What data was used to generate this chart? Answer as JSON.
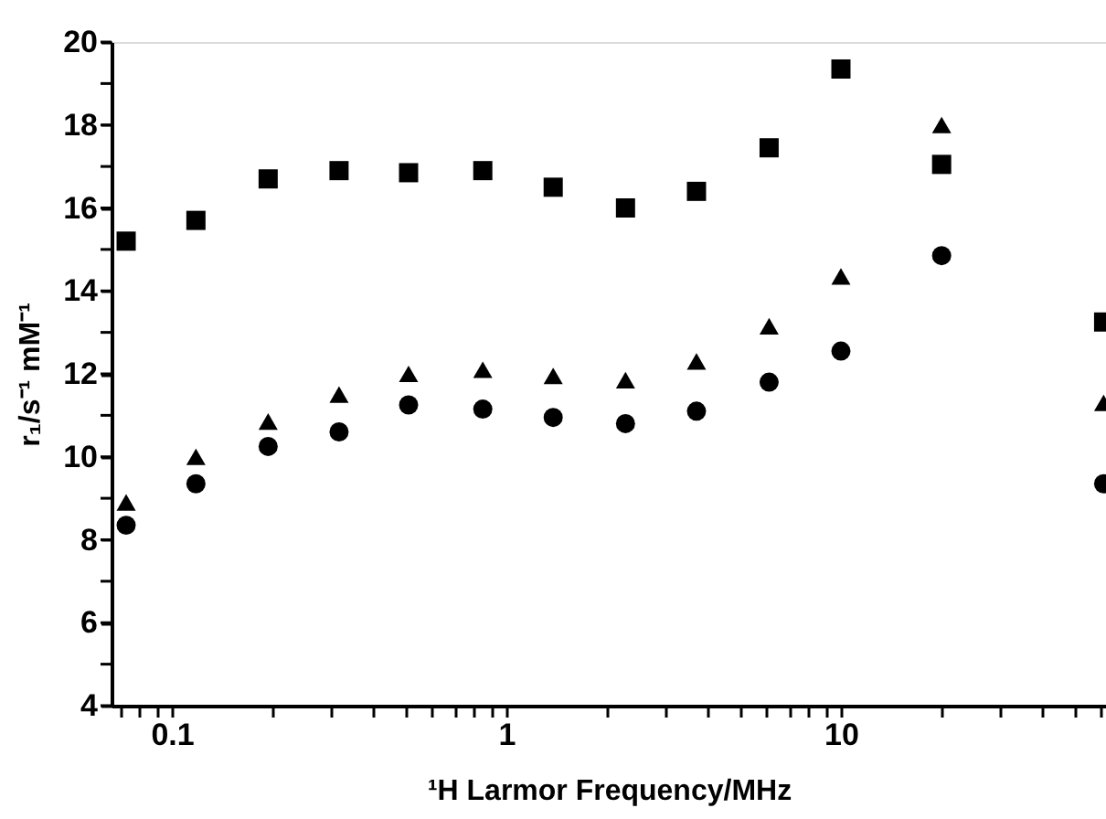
{
  "chart_data": {
    "type": "scatter",
    "xlabel": "¹H Larmor Frequency/MHz",
    "ylabel": "r₁/s⁻¹ mM⁻¹",
    "x": [
      0.073,
      0.118,
      0.194,
      0.316,
      0.51,
      0.85,
      1.38,
      2.27,
      3.7,
      6.1,
      10,
      20,
      61
    ],
    "series": [
      {
        "color": "#000000",
        "marker": "square",
        "values": [
          15.2,
          15.7,
          16.7,
          16.9,
          16.85,
          16.9,
          16.5,
          16.0,
          16.4,
          17.45,
          19.35,
          17.05,
          13.25
        ]
      },
      {
        "color": "#000000",
        "marker": "triangle",
        "values": [
          8.9,
          10.0,
          10.85,
          11.5,
          12.0,
          12.1,
          11.95,
          11.85,
          12.3,
          13.15,
          14.35,
          18.0,
          11.3
        ]
      },
      {
        "color": "#000000",
        "marker": "circle",
        "values": [
          8.35,
          9.35,
          10.25,
          10.6,
          11.25,
          11.15,
          10.95,
          10.8,
          11.1,
          11.8,
          12.55,
          14.85,
          9.35
        ]
      }
    ],
    "log": "x",
    "grid": false,
    "xlim": [
      0.066,
      62
    ],
    "ylim": [
      4,
      20
    ],
    "xticks": [
      {
        "value": 0.07,
        "label": null
      },
      {
        "value": 0.08,
        "label": null
      },
      {
        "value": 0.09,
        "label": null
      },
      0.1,
      {
        "value": 0.2,
        "label": null
      },
      {
        "value": 0.3,
        "label": null
      },
      {
        "value": 0.4,
        "label": null
      },
      {
        "value": 0.5,
        "label": null
      },
      {
        "value": 0.6,
        "label": null
      },
      {
        "value": 0.7,
        "label": null
      },
      {
        "value": 0.8,
        "label": null
      },
      {
        "value": 0.9,
        "label": null
      },
      1,
      {
        "value": 2,
        "label": null
      },
      {
        "value": 3,
        "label": null
      },
      {
        "value": 4,
        "label": null
      },
      {
        "value": 5,
        "label": null
      },
      {
        "value": 6,
        "label": null
      },
      {
        "value": 7,
        "label": null
      },
      {
        "value": 8,
        "label": null
      },
      {
        "value": 9,
        "label": null
      },
      10,
      {
        "value": 20,
        "label": null
      },
      {
        "value": 30,
        "label": null
      },
      {
        "value": 40,
        "label": null
      },
      {
        "value": 50,
        "label": null
      },
      {
        "value": 60,
        "label": null
      }
    ],
    "yticks": [
      4,
      {
        "value": 5,
        "label": null
      },
      6,
      {
        "value": 7,
        "label": null
      },
      8,
      {
        "value": 9,
        "label": null
      },
      10,
      {
        "value": 11,
        "label": null
      },
      12,
      {
        "value": 13,
        "label": null
      },
      14,
      {
        "value": 15,
        "label": null
      },
      16,
      {
        "value": 17,
        "label": null
      },
      18,
      {
        "value": 19,
        "label": null
      },
      20
    ]
  }
}
